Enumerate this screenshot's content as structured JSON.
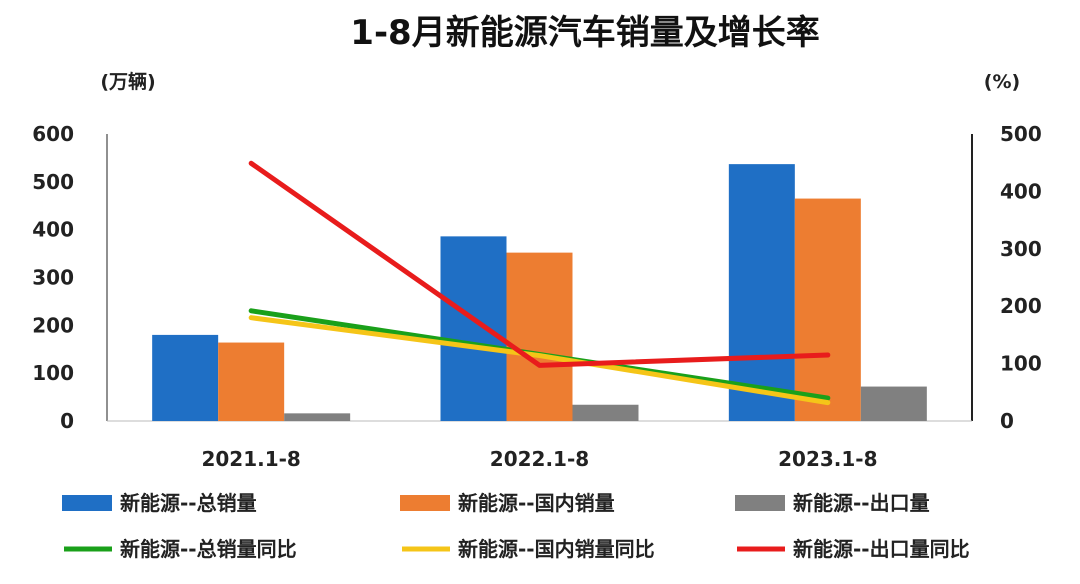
{
  "chart_data": {
    "type": "bar",
    "title": "1-8月新能源汽车销量及增长率",
    "y_left_unit": "(万辆)",
    "y_right_unit": "(%)",
    "categories": [
      "2021.1-8",
      "2022.1-8",
      "2023.1-8"
    ],
    "y_left_ticks": [
      "0",
      "100",
      "200",
      "300",
      "400",
      "500",
      "600"
    ],
    "y_right_ticks": [
      "0",
      "100",
      "200",
      "300",
      "400",
      "500"
    ],
    "ylim_left": [
      0,
      600
    ],
    "ylim_right": [
      0,
      500
    ],
    "bar_series": [
      {
        "name": "新能源--总销量",
        "color": "#1f6fc5",
        "values": [
          180,
          386,
          537
        ]
      },
      {
        "name": "新能源--国内销量",
        "color": "#ed7d31",
        "values": [
          164,
          352,
          465
        ]
      },
      {
        "name": "新能源--出口量",
        "color": "#808080",
        "values": [
          16,
          34,
          72
        ]
      }
    ],
    "line_series": [
      {
        "name": "新能源--总销量同比",
        "color": "#1aa01a",
        "values": [
          192,
          116,
          40
        ]
      },
      {
        "name": "新能源--国内销量同比",
        "color": "#f5c518",
        "values": [
          180,
          114,
          32
        ]
      },
      {
        "name": "新能源--出口量同比",
        "color": "#e81c1c",
        "values": [
          449,
          97,
          115
        ]
      }
    ],
    "legend_position": "bottom",
    "grid": false
  }
}
